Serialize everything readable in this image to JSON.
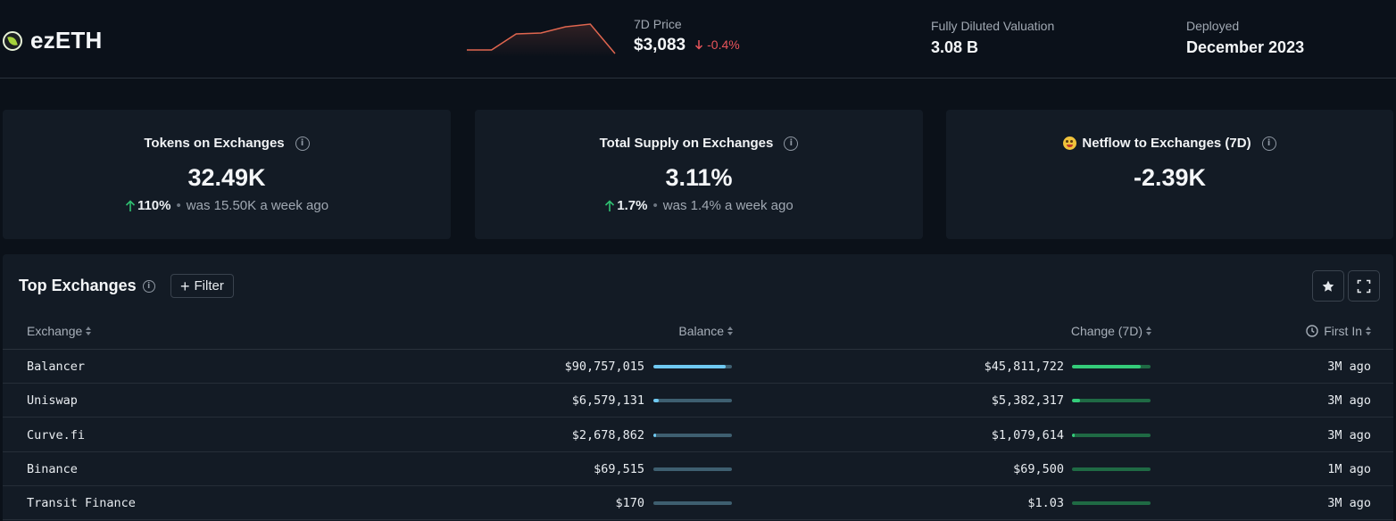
{
  "header": {
    "token_name": "ezETH",
    "price_label": "7D Price",
    "price_value": "$3,083",
    "price_change": "-0.4%",
    "fdv_label": "Fully Diluted Valuation",
    "fdv_value": "3.08 B",
    "deployed_label": "Deployed",
    "deployed_value": "December 2023",
    "sparkline": [
      30,
      30,
      12,
      11,
      4,
      1,
      34
    ],
    "colors": {
      "down": "#e8545a",
      "spark": "#e0664f"
    }
  },
  "cards": [
    {
      "title": "Tokens on Exchanges",
      "value": "32.49K",
      "change": "110%",
      "was": "was 15.50K a week ago"
    },
    {
      "title": "Total Supply on Exchanges",
      "value": "3.11%",
      "change": "1.7%",
      "was": "was 1.4% a week ago"
    },
    {
      "title": "Netflow to Exchanges (7D)",
      "value": "-2.39K"
    }
  ],
  "table": {
    "title": "Top Exchanges",
    "filter_label": "Filter",
    "columns": {
      "exchange": "Exchange",
      "balance": "Balance",
      "change": "Change (7D)",
      "first_in": "First In"
    },
    "rows": [
      {
        "exchange": "Balancer",
        "balance": "$90,757,015",
        "balance_pct": 0.92,
        "change": "$45,811,722",
        "change_pct": 0.88,
        "first_in": "3M ago"
      },
      {
        "exchange": "Uniswap",
        "balance": "$6,579,131",
        "balance_pct": 0.07,
        "change": "$5,382,317",
        "change_pct": 0.1,
        "first_in": "3M ago"
      },
      {
        "exchange": "Curve.fi",
        "balance": "$2,678,862",
        "balance_pct": 0.03,
        "change": "$1,079,614",
        "change_pct": 0.02,
        "first_in": "3M ago"
      },
      {
        "exchange": "Binance",
        "balance": "$69,515",
        "balance_pct": 0.0,
        "change": "$69,500",
        "change_pct": 0.0,
        "first_in": "1M ago"
      },
      {
        "exchange": "Transit Finance",
        "balance": "$170",
        "balance_pct": 0.0,
        "change": "$1.03",
        "change_pct": 0.0,
        "first_in": "3M ago"
      }
    ]
  }
}
